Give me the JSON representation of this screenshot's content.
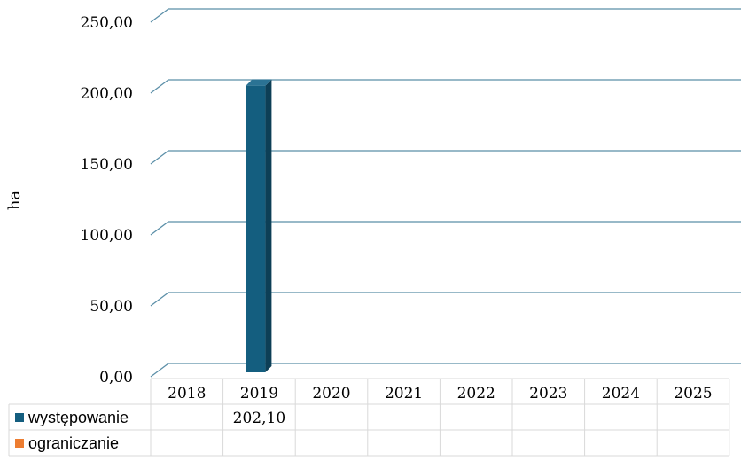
{
  "chart_data": {
    "type": "bar",
    "ylabel": "ha",
    "ylim": [
      0,
      250
    ],
    "yticks": [
      "0,00",
      "50,00",
      "100,00",
      "150,00",
      "200,00",
      "250,00"
    ],
    "categories": [
      "2018",
      "2019",
      "2020",
      "2021",
      "2022",
      "2023",
      "2024",
      "2025"
    ],
    "series": [
      {
        "name": "występowanie",
        "color": "#145E7F",
        "values": [
          null,
          202.1,
          null,
          null,
          null,
          null,
          null,
          null
        ],
        "labels": [
          "",
          "202,10",
          "",
          "",
          "",
          "",
          "",
          ""
        ]
      },
      {
        "name": "ograniczanie",
        "color": "#ED7D31",
        "values": [
          null,
          null,
          null,
          null,
          null,
          null,
          null,
          null
        ],
        "labels": [
          "",
          "",
          "",
          "",
          "",
          "",
          "",
          ""
        ]
      }
    ],
    "grid": true,
    "legend": "data-table"
  }
}
